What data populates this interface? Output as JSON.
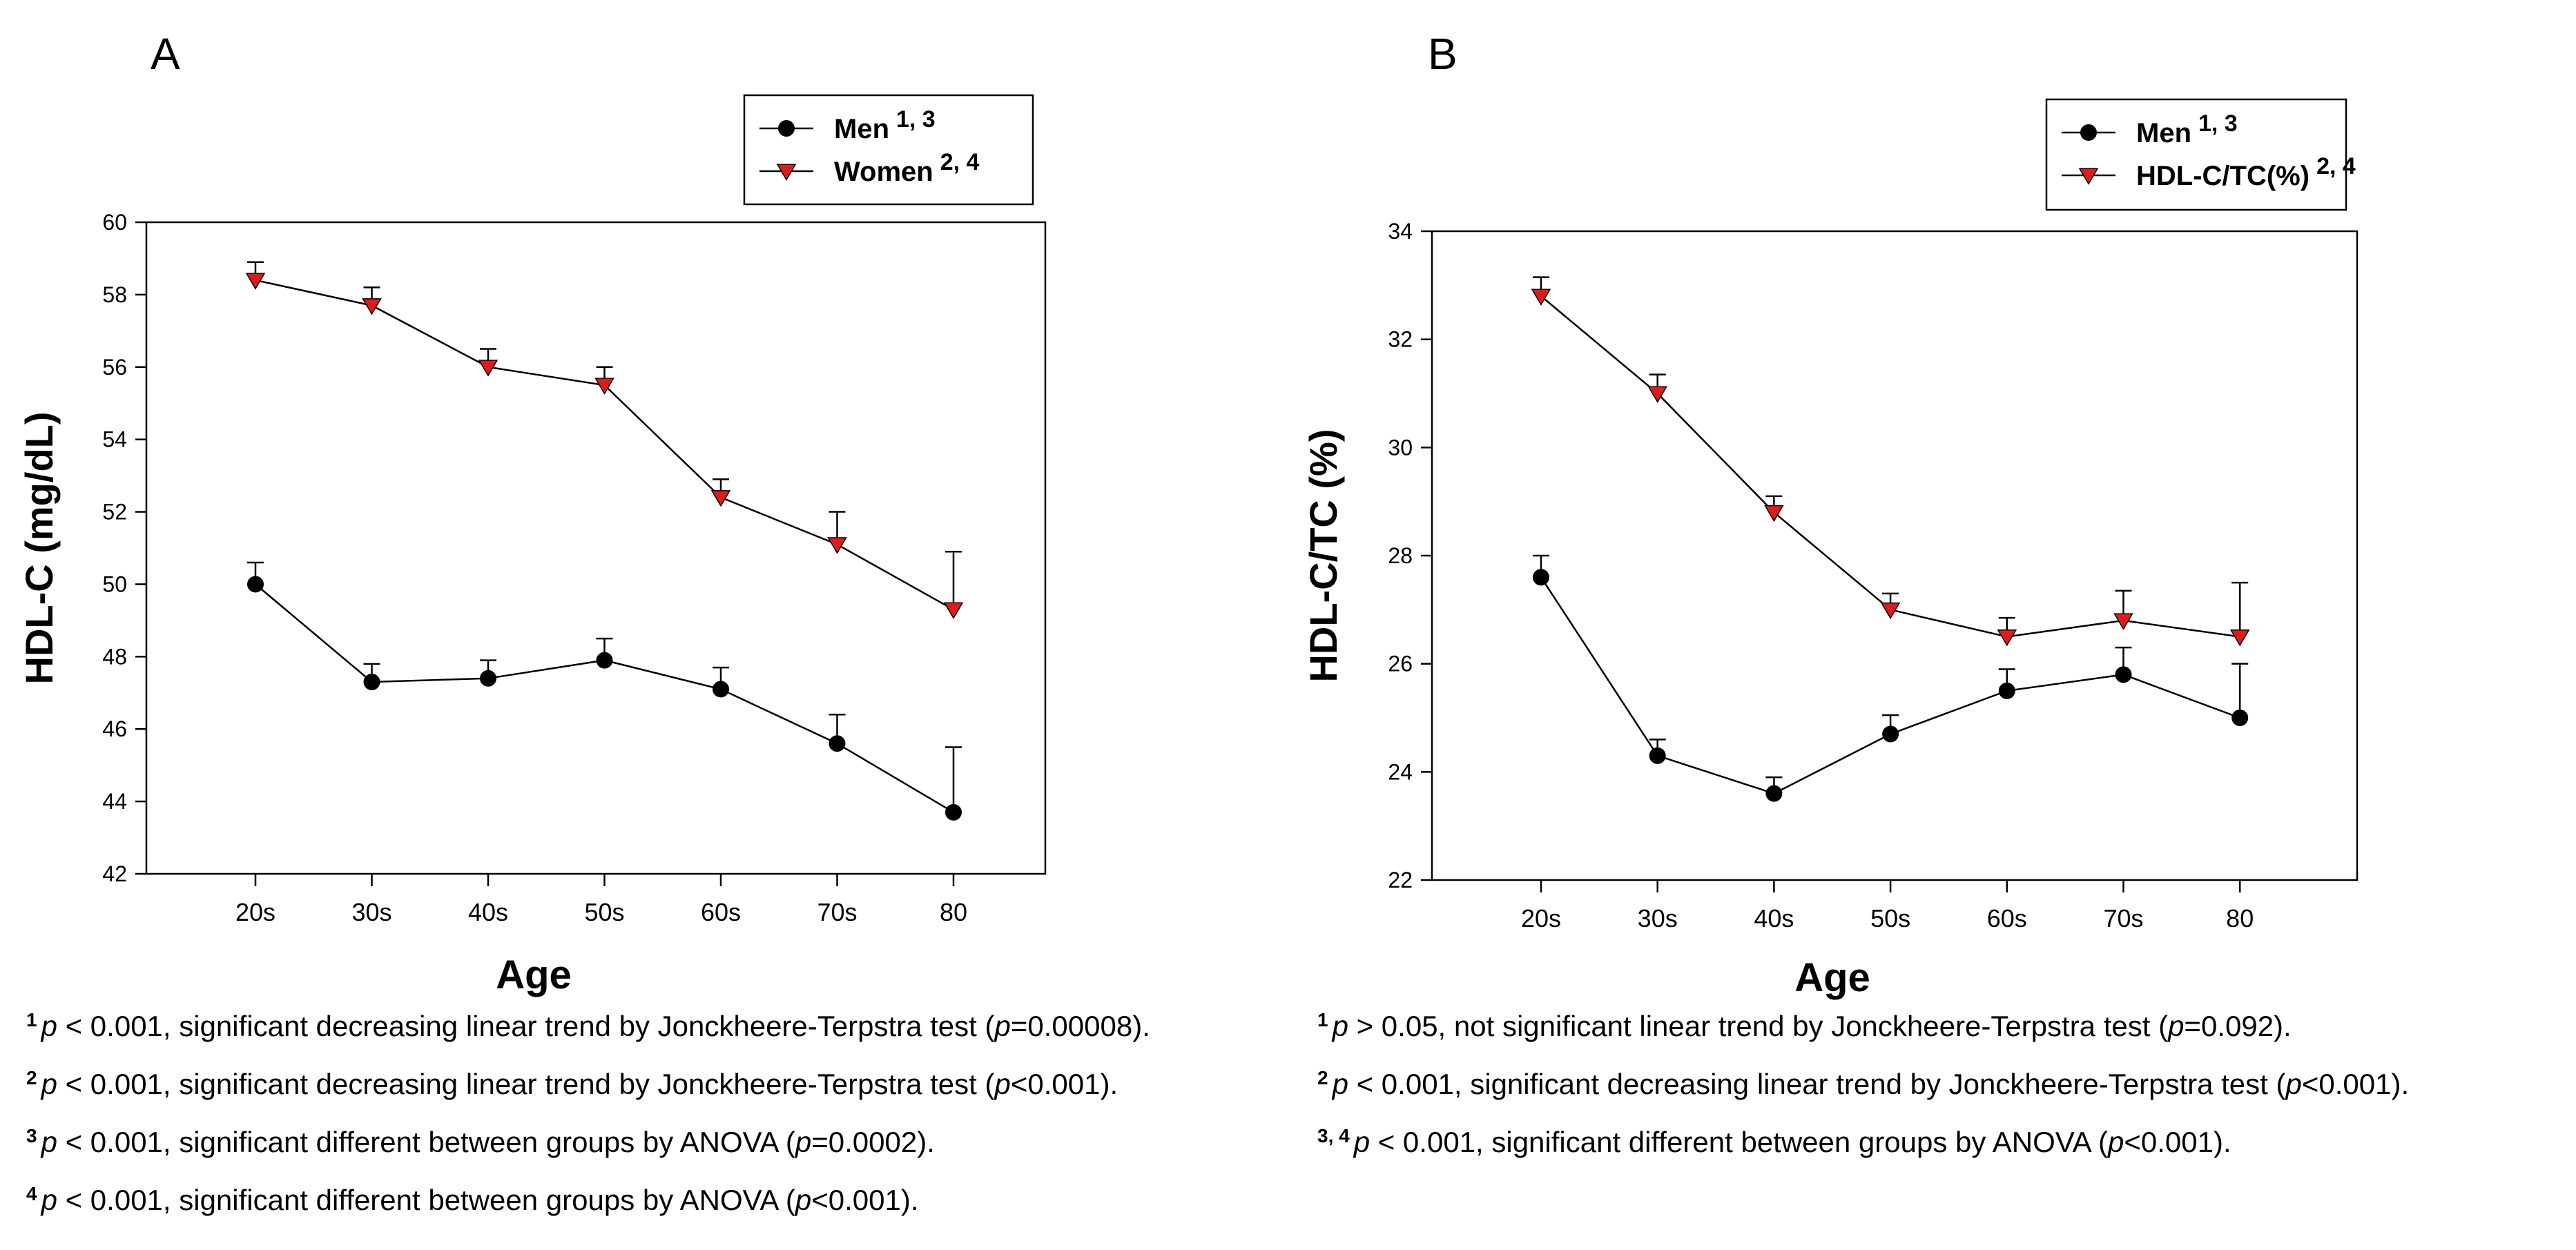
{
  "chart_data": [
    {
      "panel": "A",
      "type": "line",
      "title": "",
      "xlabel": "Age",
      "ylabel": "HDL-C (mg/dL)",
      "categories": [
        "20s",
        "30s",
        "40s",
        "50s",
        "60s",
        "70s",
        "80"
      ],
      "ylim": [
        42,
        60
      ],
      "yticks": [
        42,
        44,
        46,
        48,
        50,
        52,
        54,
        56,
        58,
        60
      ],
      "series": [
        {
          "name": "Men",
          "legend_sup": "1, 3",
          "marker": "circle",
          "color": "#000000",
          "values": [
            50.0,
            47.3,
            47.4,
            47.9,
            47.1,
            45.6,
            43.7
          ],
          "errors": [
            0.6,
            0.5,
            0.5,
            0.6,
            0.6,
            0.8,
            1.8
          ]
        },
        {
          "name": "Women",
          "legend_sup": "2, 4",
          "marker": "triangle-down",
          "color": "#e01b1b",
          "values": [
            58.4,
            57.7,
            56.0,
            55.5,
            52.4,
            51.1,
            49.3
          ],
          "errors": [
            0.5,
            0.5,
            0.5,
            0.5,
            0.5,
            0.9,
            1.6
          ]
        }
      ]
    },
    {
      "panel": "B",
      "type": "line",
      "title": "",
      "xlabel": "Age",
      "ylabel": "HDL-C/TC (%)",
      "categories": [
        "20s",
        "30s",
        "40s",
        "50s",
        "60s",
        "70s",
        "80"
      ],
      "ylim": [
        22,
        34
      ],
      "yticks": [
        22,
        24,
        26,
        28,
        30,
        32,
        34
      ],
      "series": [
        {
          "name": "Men",
          "legend_sup": "1, 3",
          "marker": "circle",
          "color": "#000000",
          "values": [
            27.6,
            24.3,
            23.6,
            24.7,
            25.5,
            25.8,
            25.0
          ],
          "errors": [
            0.4,
            0.3,
            0.3,
            0.35,
            0.4,
            0.5,
            1.0
          ]
        },
        {
          "name": "HDL-C/TC(%)",
          "legend_sup": "2, 4",
          "marker": "triangle-down",
          "color": "#e01b1b",
          "values": [
            32.8,
            31.0,
            28.8,
            27.0,
            26.5,
            26.8,
            26.5
          ],
          "errors": [
            0.35,
            0.35,
            0.3,
            0.3,
            0.35,
            0.55,
            1.0
          ]
        }
      ]
    }
  ],
  "footnotes": {
    "A": [
      {
        "sup": "1",
        "p": "p",
        "stat": " < 0.001, significant decreasing linear trend by Jonckheere-Terpstra test (",
        "p2": "p",
        "val": "=0.00008)."
      },
      {
        "sup": "2",
        "p": "p",
        "stat": " < 0.001, significant decreasing linear trend by Jonckheere-Terpstra test (",
        "p2": "p",
        "val": "<0.001)."
      },
      {
        "sup": "3",
        "p": "p",
        "stat": " < 0.001, significant different between groups by ANOVA (",
        "p2": "p",
        "val": "=0.0002)."
      },
      {
        "sup": "4",
        "p": "p",
        "stat": " < 0.001, significant different between groups by ANOVA (",
        "p2": "p",
        "val": "<0.001)."
      }
    ],
    "B": [
      {
        "sup": "1",
        "p": "p",
        "stat": " > 0.05, not significant linear trend by Jonckheere-Terpstra test (",
        "p2": "p",
        "val": "=0.092)."
      },
      {
        "sup": "2",
        "p": "p",
        "stat": " < 0.001, significant decreasing linear trend by Jonckheere-Terpstra test (",
        "p2": "p",
        "val": "<0.001)."
      },
      {
        "sup": "3, 4",
        "p": "p",
        "stat": " < 0.001, significant different between groups by ANOVA (",
        "p2": "p",
        "val": "<0.001)."
      }
    ]
  }
}
